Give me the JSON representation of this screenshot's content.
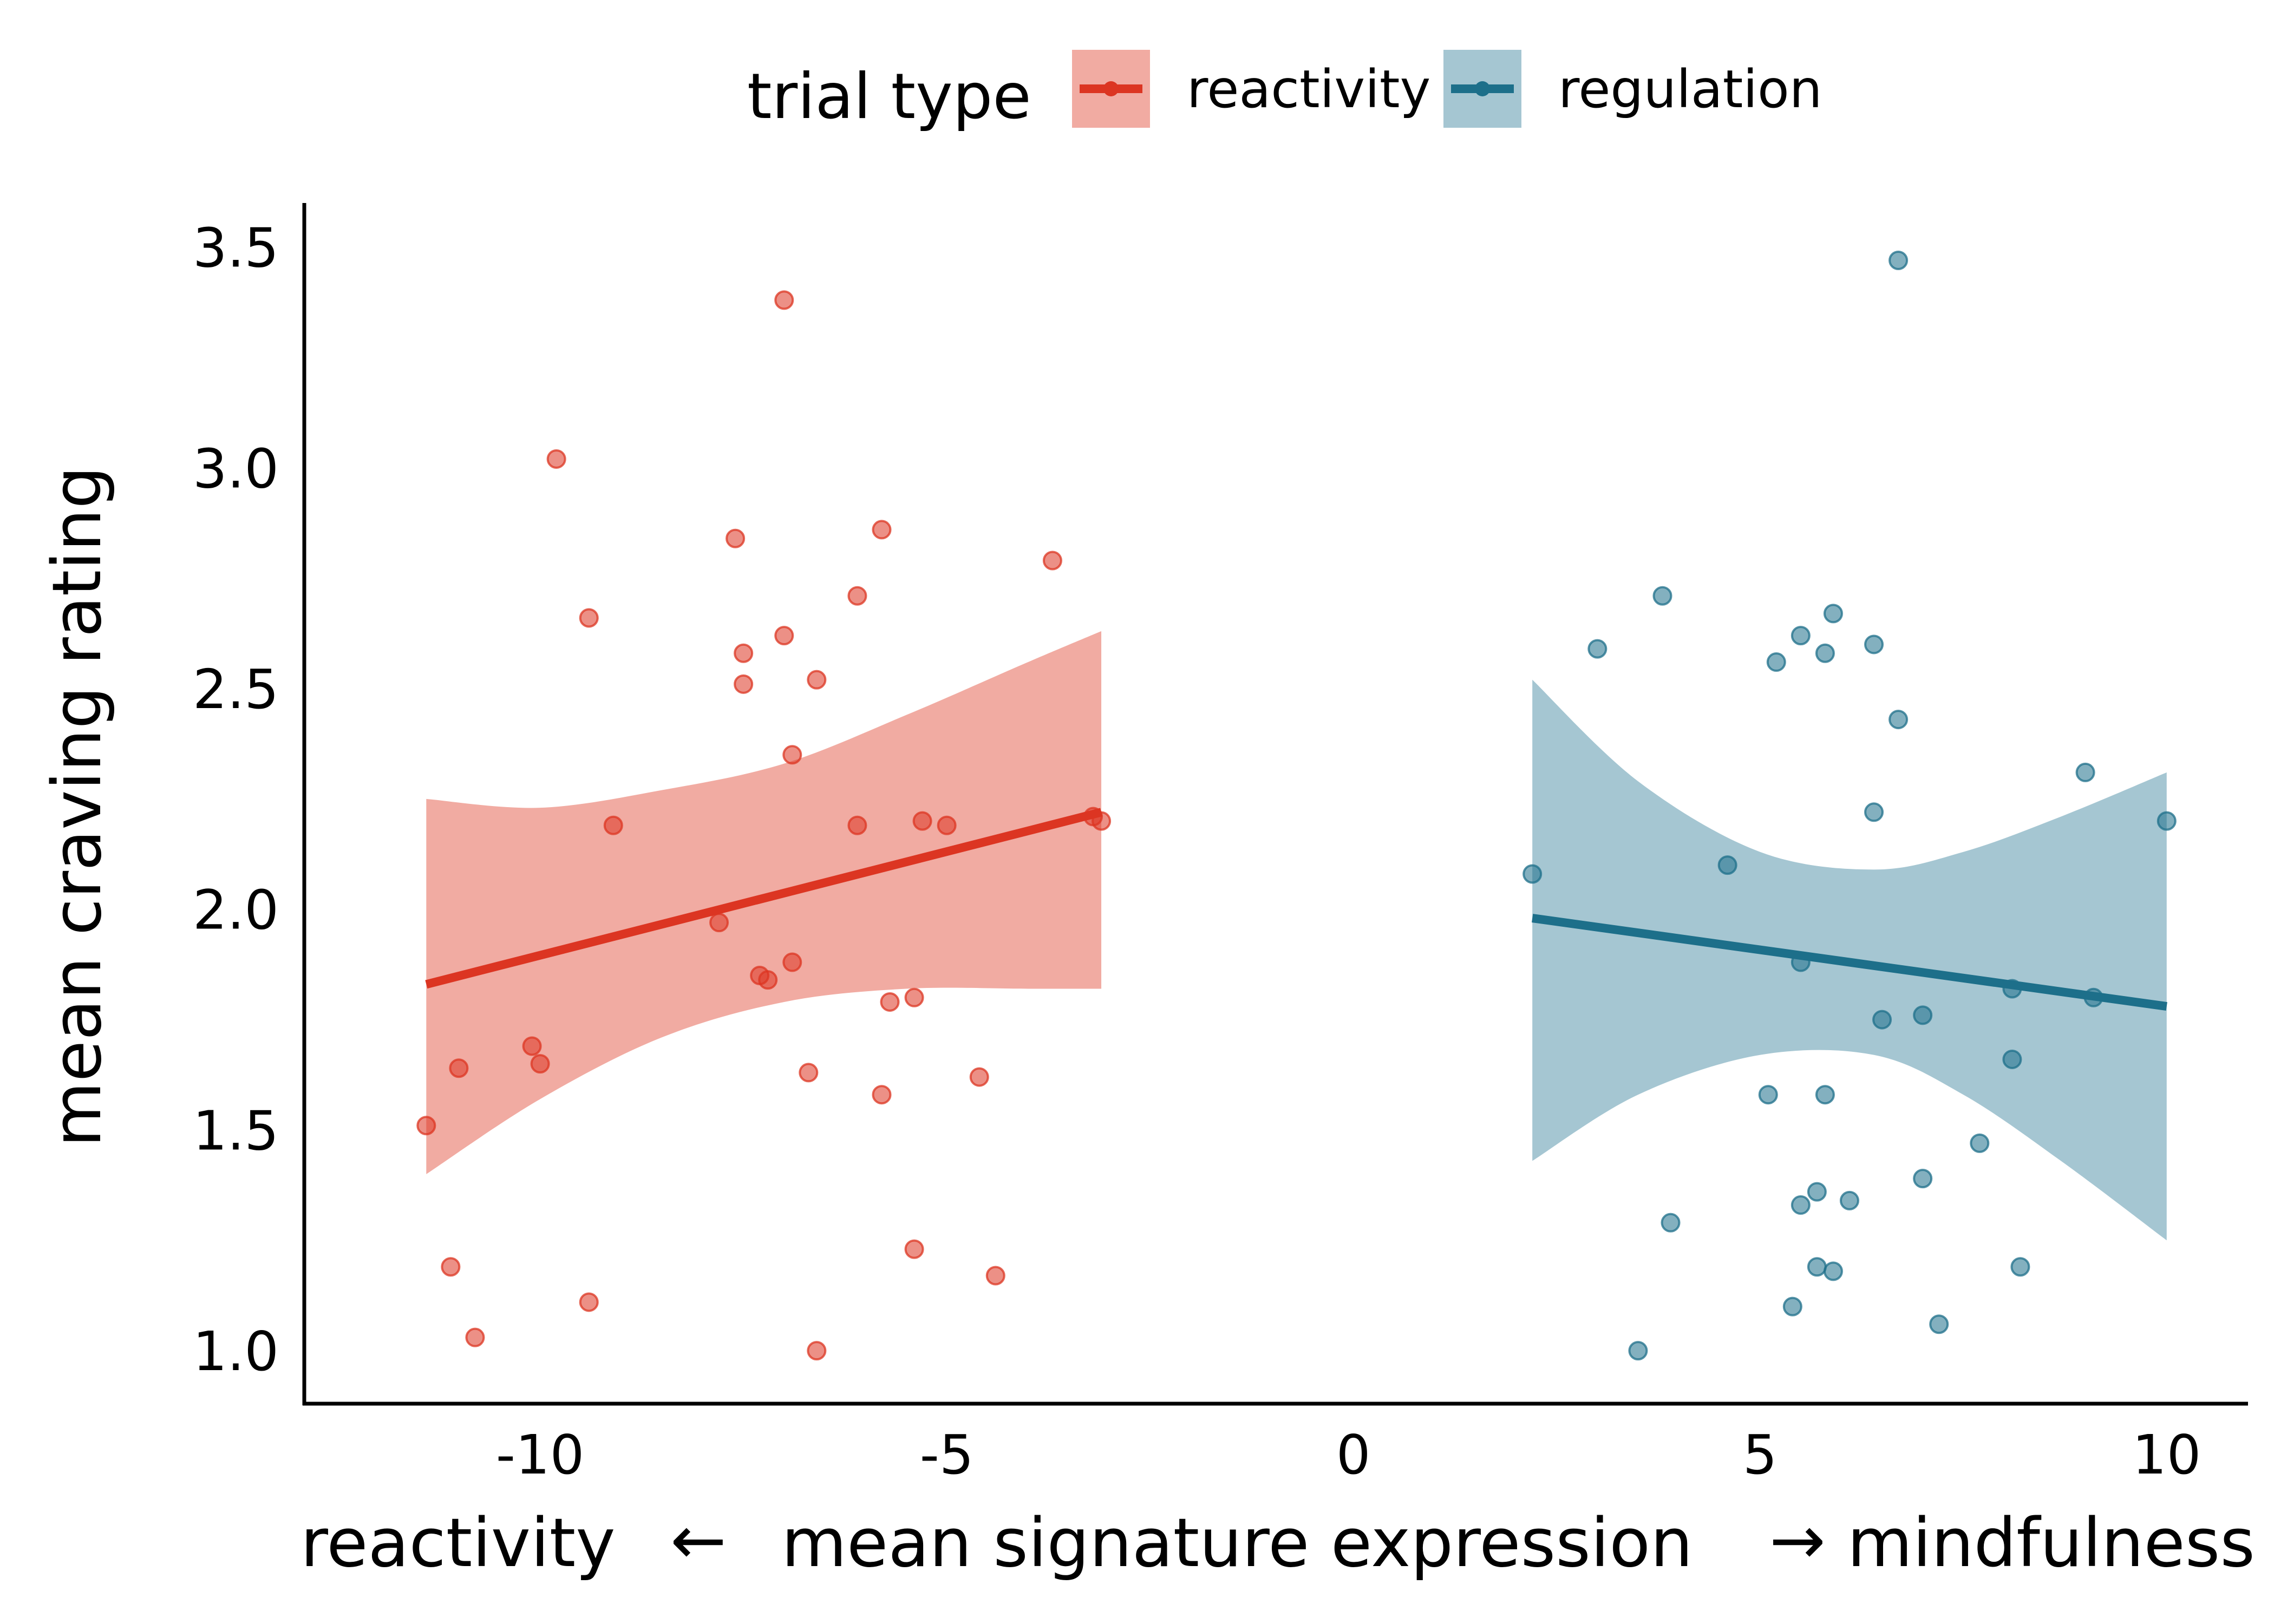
{
  "chart_data": {
    "type": "scatter",
    "xlabel": "mean signature expression",
    "xlabel_left": "reactivity",
    "xlabel_right": "mindfulness",
    "left_arrow": "←",
    "right_arrow": "→",
    "ylabel": "mean craving rating",
    "xlim": [
      -12.9,
      11.0
    ],
    "ylim": [
      0.88,
      3.6
    ],
    "x_ticks": [
      -10,
      -5,
      0,
      5,
      10
    ],
    "x_tick_labels": [
      "-10",
      "-5",
      "0",
      "5",
      "10"
    ],
    "y_ticks": [
      1.0,
      1.5,
      2.0,
      2.5,
      3.0,
      3.5
    ],
    "y_tick_labels": [
      "1.0",
      "1.5",
      "2.0",
      "2.5",
      "3.0",
      "3.5"
    ],
    "grid": false,
    "legend": {
      "title": "trial type",
      "position": "top"
    },
    "series": [
      {
        "name": "reactivity",
        "color": "#DC3522",
        "band_color": "#F1ABA2",
        "points": [
          [
            -11.4,
            1.51
          ],
          [
            -11.1,
            1.19
          ],
          [
            -11.0,
            1.64
          ],
          [
            -10.8,
            1.03
          ],
          [
            -10.1,
            1.69
          ],
          [
            -10.0,
            1.65
          ],
          [
            -9.8,
            3.02
          ],
          [
            -9.4,
            2.66
          ],
          [
            -9.4,
            1.11
          ],
          [
            -9.1,
            2.19
          ],
          [
            -7.8,
            1.97
          ],
          [
            -7.6,
            2.84
          ],
          [
            -7.5,
            2.58
          ],
          [
            -7.5,
            2.51
          ],
          [
            -7.3,
            1.85
          ],
          [
            -7.2,
            1.84
          ],
          [
            -7.0,
            3.38
          ],
          [
            -7.0,
            2.62
          ],
          [
            -6.9,
            1.88
          ],
          [
            -6.9,
            2.35
          ],
          [
            -6.7,
            1.63
          ],
          [
            -6.6,
            2.52
          ],
          [
            -6.6,
            1.0
          ],
          [
            -6.1,
            2.71
          ],
          [
            -6.1,
            2.19
          ],
          [
            -5.8,
            2.86
          ],
          [
            -5.8,
            1.58
          ],
          [
            -5.7,
            1.79
          ],
          [
            -5.4,
            1.8
          ],
          [
            -5.4,
            1.23
          ],
          [
            -5.3,
            2.2
          ],
          [
            -5.0,
            2.19
          ],
          [
            -4.6,
            1.62
          ],
          [
            -4.4,
            1.17
          ],
          [
            -3.7,
            2.79
          ],
          [
            -3.2,
            2.21
          ],
          [
            -3.1,
            2.2
          ]
        ],
        "fit": {
          "x": [
            -11.4,
            -3.1
          ],
          "y": [
            1.83,
            2.22
          ]
        },
        "ci": {
          "x": [
            -11.4,
            -10.0,
            -8.5,
            -7.0,
            -5.5,
            -4.0,
            -3.1
          ],
          "lower": [
            1.4,
            1.57,
            1.71,
            1.79,
            1.82,
            1.82,
            1.82
          ],
          "upper": [
            2.25,
            2.23,
            2.27,
            2.33,
            2.44,
            2.56,
            2.63
          ]
        }
      },
      {
        "name": "regulation",
        "color": "#1D6F8A",
        "band_color": "#A5C6D2",
        "points": [
          [
            2.2,
            2.08
          ],
          [
            3.0,
            2.59
          ],
          [
            3.5,
            1.0
          ],
          [
            3.8,
            2.71
          ],
          [
            3.9,
            1.29
          ],
          [
            4.6,
            2.1
          ],
          [
            5.1,
            1.58
          ],
          [
            5.2,
            2.56
          ],
          [
            5.4,
            1.1
          ],
          [
            5.5,
            2.62
          ],
          [
            5.5,
            1.88
          ],
          [
            5.5,
            1.33
          ],
          [
            5.7,
            1.36
          ],
          [
            5.7,
            1.19
          ],
          [
            5.8,
            2.58
          ],
          [
            5.8,
            1.58
          ],
          [
            5.9,
            1.18
          ],
          [
            5.9,
            2.67
          ],
          [
            6.1,
            1.34
          ],
          [
            6.4,
            2.6
          ],
          [
            6.4,
            2.22
          ],
          [
            6.5,
            1.75
          ],
          [
            6.7,
            3.47
          ],
          [
            6.7,
            2.43
          ],
          [
            7.0,
            1.39
          ],
          [
            7.0,
            1.76
          ],
          [
            7.2,
            1.06
          ],
          [
            7.7,
            1.47
          ],
          [
            8.1,
            1.82
          ],
          [
            8.1,
            1.66
          ],
          [
            8.2,
            1.19
          ],
          [
            9.0,
            2.31
          ],
          [
            9.1,
            1.8
          ],
          [
            10.0,
            2.2
          ]
        ],
        "fit": {
          "x": [
            2.2,
            10.0
          ],
          "y": [
            1.98,
            1.78
          ]
        },
        "ci": {
          "x": [
            2.2,
            3.5,
            5.0,
            6.4,
            7.5,
            8.7,
            10.0
          ],
          "lower": [
            1.43,
            1.58,
            1.67,
            1.67,
            1.58,
            1.43,
            1.25
          ],
          "upper": [
            2.52,
            2.29,
            2.13,
            2.09,
            2.13,
            2.21,
            2.31
          ]
        }
      }
    ]
  }
}
